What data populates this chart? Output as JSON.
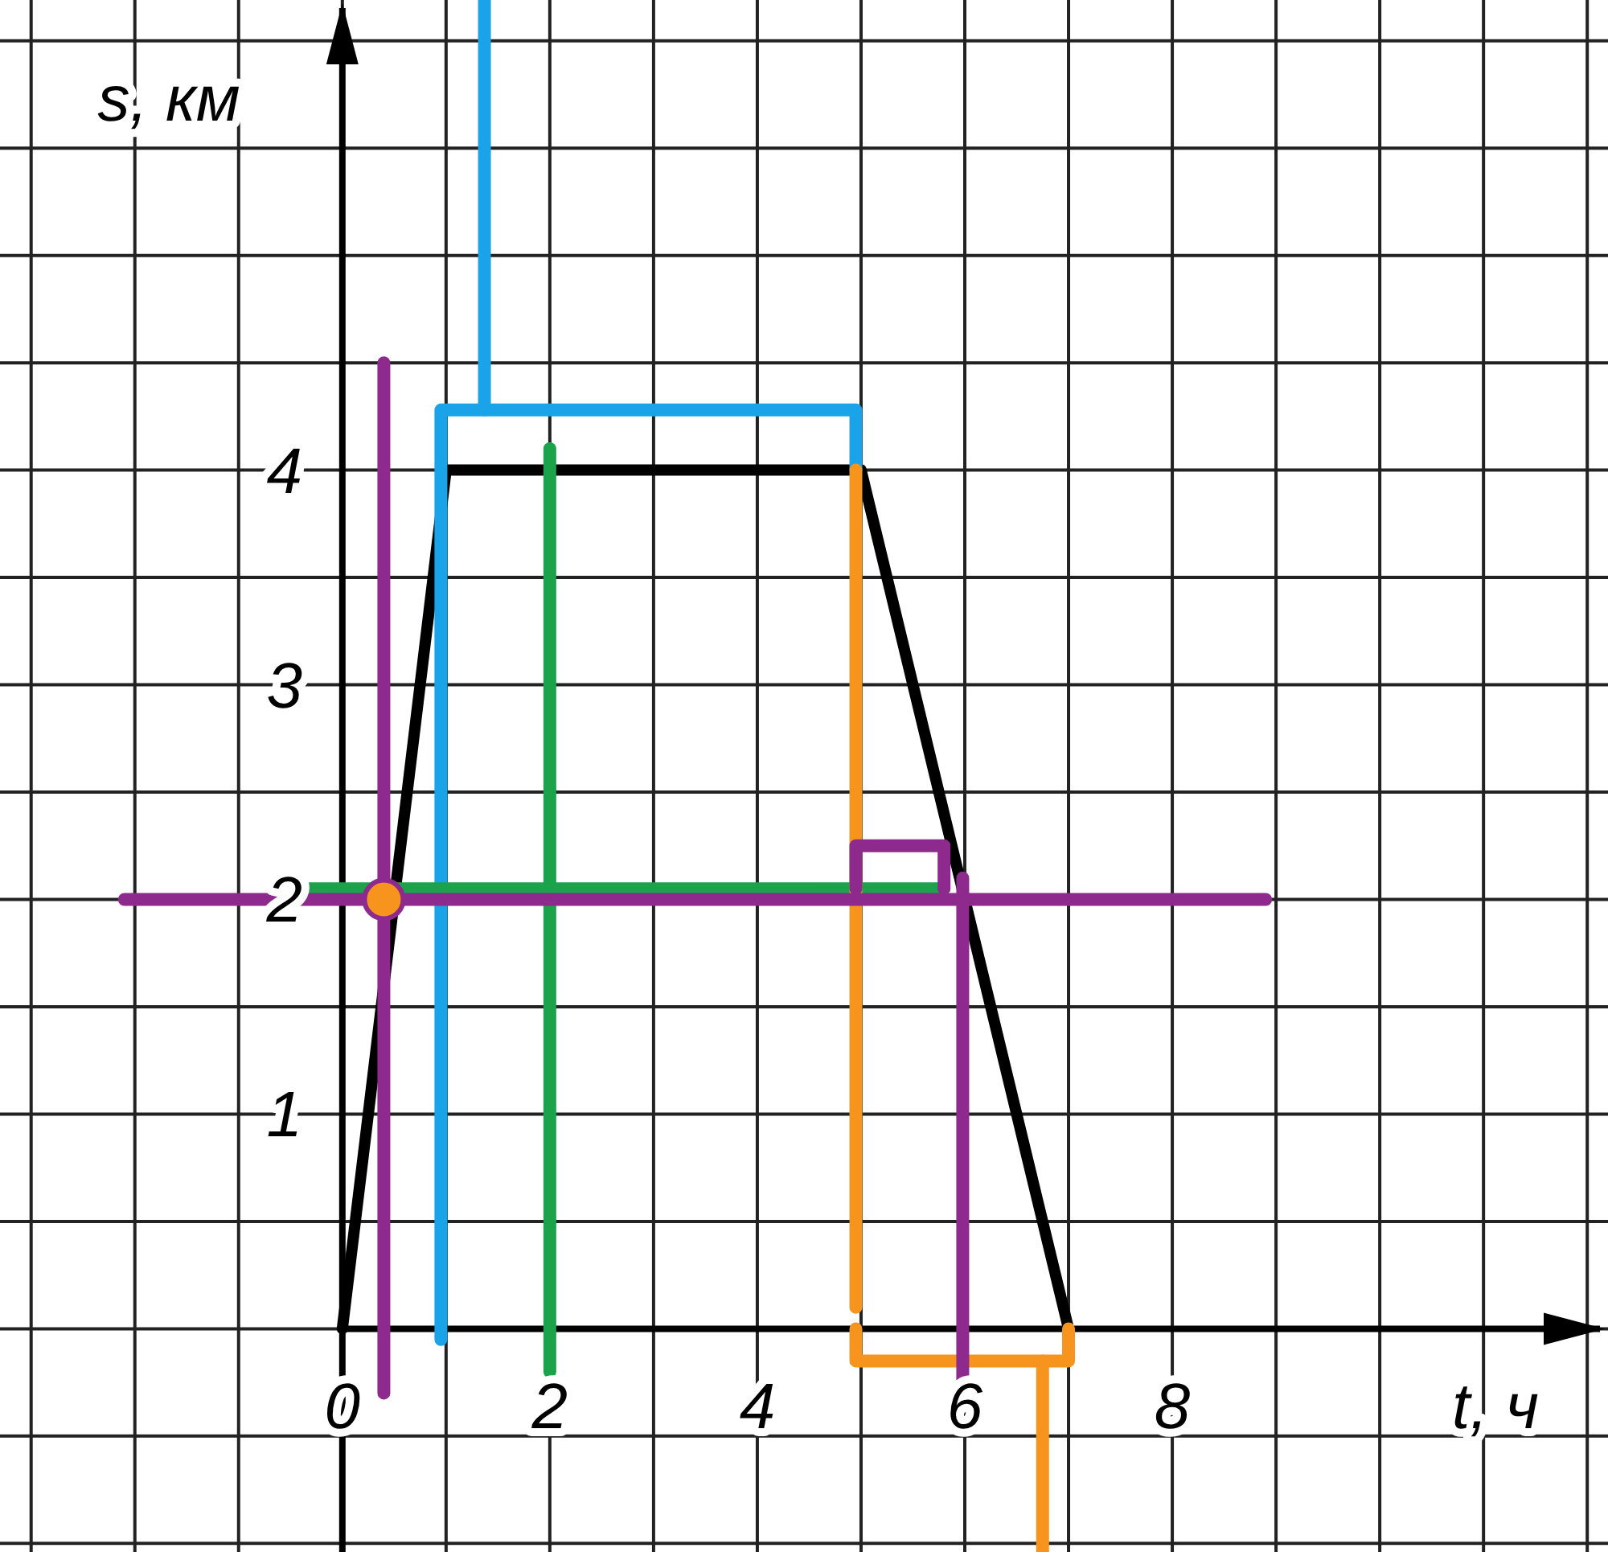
{
  "chart_data": {
    "type": "line",
    "xlabel": "t, ч",
    "ylabel": "s, км",
    "xlim": [
      -3.3,
      12.2
    ],
    "ylim": [
      -1.04,
      6.19
    ],
    "xticks": [
      {
        "value": -3,
        "label": null
      },
      {
        "value": -2,
        "label": null
      },
      {
        "value": -1,
        "label": null
      },
      {
        "value": 0,
        "label": "0"
      },
      {
        "value": 1,
        "label": null
      },
      {
        "value": 2,
        "label": "2"
      },
      {
        "value": 3,
        "label": null
      },
      {
        "value": 4,
        "label": "4"
      },
      {
        "value": 5,
        "label": null
      },
      {
        "value": 6,
        "label": "6"
      },
      {
        "value": 7,
        "label": null
      },
      {
        "value": 8,
        "label": "8"
      },
      {
        "value": 9,
        "label": null
      },
      {
        "value": 10,
        "label": null
      },
      {
        "value": 11,
        "label": null
      },
      {
        "value": 12,
        "label": null
      }
    ],
    "yticks": [
      {
        "value": -1,
        "label": null
      },
      {
        "value": -0.5,
        "label": null
      },
      {
        "value": 0,
        "label": null
      },
      {
        "value": 0.5,
        "label": null
      },
      1,
      {
        "value": 1.5,
        "label": null
      },
      2,
      {
        "value": 2.5,
        "label": null
      },
      3,
      {
        "value": 3.5,
        "label": null
      },
      4,
      {
        "value": 4.5,
        "label": null
      },
      {
        "value": 5,
        "label": null
      },
      {
        "value": 5.5,
        "label": null
      },
      {
        "value": 6,
        "label": null
      }
    ],
    "grid": true,
    "series": [
      {
        "color": "#000000",
        "x": [
          0,
          1,
          5,
          7
        ],
        "values": [
          0,
          4,
          4,
          0
        ]
      },
      {
        "color": "#1aa3e8",
        "x": [
          0.95,
          0.95,
          0.95,
          4.95,
          4.95
        ],
        "values": [
          -0.05,
          4,
          4.28,
          4.28,
          4
        ]
      },
      {
        "color": "#1aa3e8",
        "x": [
          1.37,
          1.37
        ],
        "values": [
          4.28,
          6.19
        ]
      },
      {
        "color": "#1aa34a",
        "x": [
          2,
          2
        ],
        "values": [
          -0.2,
          4.1
        ]
      },
      {
        "color": "#1aa34a",
        "x": [
          -0.45,
          5.8
        ],
        "values": [
          2.05,
          2.05
        ]
      },
      {
        "color": "#f7941d",
        "x": [
          4.95,
          4.95
        ],
        "values": [
          0.1,
          4
        ]
      },
      {
        "color": "#f7941d",
        "x": [
          4.95,
          4.95,
          7,
          7
        ],
        "values": [
          0,
          -0.15,
          -0.15,
          0
        ]
      },
      {
        "color": "#f7941d",
        "x": [
          6.75,
          6.75
        ],
        "values": [
          -0.15,
          -1.04
        ]
      },
      {
        "color": "#8e2a8e",
        "x": [
          -2.1,
          8.9
        ],
        "values": [
          2,
          2
        ]
      },
      {
        "color": "#8e2a8e",
        "x": [
          0.4,
          0.4
        ],
        "values": [
          -0.3,
          4.5
        ]
      },
      {
        "color": "#8e2a8e",
        "x": [
          5.98,
          5.98
        ],
        "values": [
          -0.3,
          2.1
        ]
      },
      {
        "color": "#8e2a8e",
        "x": [
          4.95,
          4.95,
          5.8,
          5.8
        ],
        "values": [
          2.05,
          2.25,
          2.25,
          2.05
        ]
      },
      {
        "type": "scatter",
        "color": "#f7941d",
        "x": [
          0.4
        ],
        "values": [
          2
        ]
      }
    ]
  }
}
